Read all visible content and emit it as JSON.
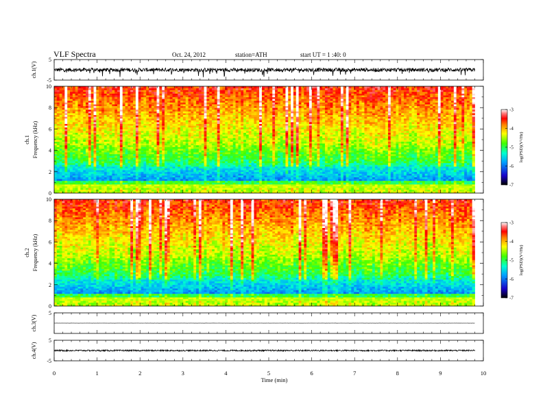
{
  "header": {
    "title": "VLF Spectra",
    "date": "Oct. 24, 2012",
    "station": "station=ATH",
    "start_ut": "start UT = 1 :40: 0"
  },
  "chart_data": [
    {
      "type": "line",
      "ylabel": "ch.1(V)",
      "ylim": [
        -5,
        5
      ],
      "yticks": [
        "5",
        "-5"
      ],
      "xlim": [
        0,
        10
      ],
      "x_extent": 9.8,
      "baseline": 0.0,
      "amplitude": 0.9,
      "description": "noisy waveform"
    },
    {
      "type": "heatmap",
      "channel_label": "ch.1",
      "ylabel": "Frequency (kHz)",
      "ylim": [
        0,
        10
      ],
      "yticks": [
        "0",
        "2",
        "4",
        "6",
        "8",
        "10"
      ],
      "xlim": [
        0,
        10
      ],
      "x_extent": 9.8,
      "colorbar": {
        "label": "log(PSD)(V²/Hz)",
        "range": [
          -7,
          -3
        ],
        "ticks": [
          "-3",
          "-4",
          "-5",
          "-6",
          "-7"
        ]
      }
    },
    {
      "type": "heatmap",
      "channel_label": "ch.2",
      "ylabel": "Frequency (kHz)",
      "ylim": [
        0,
        10
      ],
      "yticks": [
        "0",
        "2",
        "4",
        "6",
        "8",
        "10"
      ],
      "xlim": [
        0,
        10
      ],
      "x_extent": 9.8,
      "colorbar": {
        "label": "log(PSD)(V²/Hz)",
        "range": [
          -7,
          -3
        ],
        "ticks": [
          "-3",
          "-4",
          "-5",
          "-6",
          "-7"
        ]
      }
    },
    {
      "type": "line",
      "ylabel": "ch.3(V)",
      "ylim": [
        -5,
        5
      ],
      "yticks": [
        "5"
      ],
      "xlim": [
        0,
        10
      ],
      "x_extent": 9.8,
      "baseline": 0.0,
      "amplitude": 0.05
    },
    {
      "type": "line",
      "ylabel": "ch.4(V)",
      "ylim": [
        -5,
        5
      ],
      "yticks": [
        "5",
        "-5"
      ],
      "xlim": [
        0,
        10
      ],
      "x_extent": 9.8,
      "baseline": 0.0,
      "amplitude": 0.35,
      "xlabel": "Time (min)",
      "xticks": [
        "0",
        "1",
        "2",
        "3",
        "4",
        "5",
        "6",
        "7",
        "8",
        "9",
        "10"
      ]
    }
  ]
}
